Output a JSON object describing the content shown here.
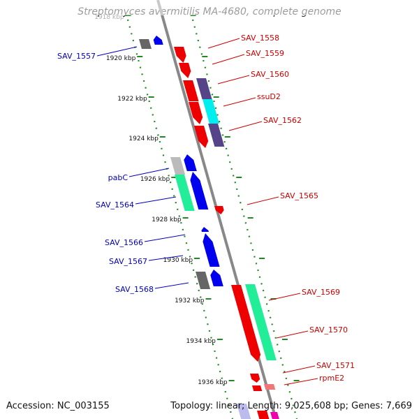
{
  "title": "Streptomyces avermitilis MA-4680, complete genome",
  "footer": {
    "accession": "Accession: NC_003155",
    "topology": "Topology: linear; Length: 9,025,608 bp; Genes: 7,669"
  },
  "colors": {
    "forward_red": "#ee0000",
    "reverse_blue": "#0000ee",
    "dark_slate": "#554488",
    "cyan": "#00eeee",
    "aquamarine": "#22ee99",
    "grey": "#666666",
    "light_grey": "#bbbbbb",
    "pink": "#ee7777",
    "label_red": "#cc0000",
    "label_blue": "#0000bb",
    "backbone": "#888888",
    "tick_green": "#228822"
  },
  "ticks": [
    {
      "label": "1918 kbp"
    },
    {
      "label": "1920 kbp"
    },
    {
      "label": "1922 kbp"
    },
    {
      "label": "1924 kbp"
    },
    {
      "label": "1926 kbp"
    },
    {
      "label": "1928 kbp"
    },
    {
      "label": "1930 kbp"
    },
    {
      "label": "1932 kbp"
    },
    {
      "label": "1934 kbp"
    },
    {
      "label": "1936 kbp"
    }
  ],
  "labels_right": [
    {
      "text": "SAV_1558"
    },
    {
      "text": "SAV_1559"
    },
    {
      "text": "SAV_1560"
    },
    {
      "text": "ssuD2"
    },
    {
      "text": "SAV_1562"
    },
    {
      "text": "SAV_1565"
    },
    {
      "text": "SAV_1569"
    },
    {
      "text": "SAV_1570"
    },
    {
      "text": "SAV_1571"
    },
    {
      "text": "rpmE2"
    }
  ],
  "labels_left": [
    {
      "text": "SAV_1557"
    },
    {
      "text": "pabC"
    },
    {
      "text": "SAV_1564"
    },
    {
      "text": "SAV_1566"
    },
    {
      "text": "SAV_1567"
    },
    {
      "text": "SAV_1568"
    }
  ]
}
